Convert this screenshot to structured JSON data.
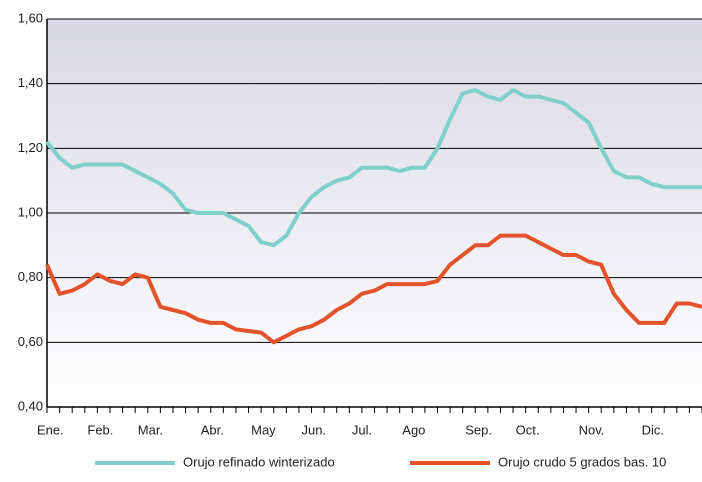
{
  "chart_data": {
    "type": "line",
    "categories": [
      "Ene.",
      null,
      null,
      null,
      "Feb.",
      null,
      null,
      null,
      "Mar.",
      null,
      null,
      null,
      null,
      "Abr.",
      null,
      null,
      null,
      "May",
      null,
      null,
      null,
      "Jun.",
      null,
      null,
      null,
      "Jul.",
      null,
      null,
      null,
      "Ago",
      null,
      null,
      null,
      null,
      "Sep.",
      null,
      null,
      null,
      "Oct.",
      null,
      null,
      null,
      null,
      "Nov.",
      null,
      null,
      null,
      null,
      "Dic.",
      null,
      null,
      null,
      null
    ],
    "series": [
      {
        "name": "Orujo refinado winterizado",
        "color": "#7fd0c8",
        "values": [
          1.22,
          1.17,
          1.14,
          1.15,
          1.15,
          1.15,
          1.15,
          1.13,
          1.11,
          1.09,
          1.06,
          1.01,
          1.0,
          1.0,
          1.0,
          0.98,
          0.96,
          0.91,
          0.9,
          0.93,
          1.0,
          1.05,
          1.08,
          1.1,
          1.11,
          1.14,
          1.14,
          1.14,
          1.13,
          1.14,
          1.14,
          1.2,
          1.29,
          1.37,
          1.38,
          1.36,
          1.35,
          1.38,
          1.36,
          1.36,
          1.35,
          1.34,
          1.31,
          1.28,
          1.2,
          1.13,
          1.11,
          1.11,
          1.09,
          1.08,
          1.08,
          1.08,
          1.08
        ]
      },
      {
        "name": "Orujo crudo 5 grados bas. 10",
        "color": "#e2532b",
        "values": [
          0.84,
          0.75,
          0.76,
          0.78,
          0.81,
          0.79,
          0.78,
          0.81,
          0.8,
          0.71,
          0.7,
          0.69,
          0.67,
          0.66,
          0.66,
          0.64,
          0.635,
          0.63,
          0.6,
          0.62,
          0.64,
          0.65,
          0.67,
          0.7,
          0.72,
          0.75,
          0.76,
          0.78,
          0.78,
          0.78,
          0.78,
          0.79,
          0.84,
          0.87,
          0.9,
          0.9,
          0.93,
          0.93,
          0.93,
          0.91,
          0.89,
          0.87,
          0.87,
          0.85,
          0.84,
          0.75,
          0.7,
          0.66,
          0.66,
          0.66,
          0.72,
          0.72,
          0.71
        ]
      }
    ],
    "ylim": [
      0.4,
      1.6
    ],
    "yticks": [
      {
        "value": 0.4,
        "label": "0,40"
      },
      {
        "value": 0.6,
        "label": "0,60"
      },
      {
        "value": 0.8,
        "label": "0,80"
      },
      {
        "value": 1.0,
        "label": "1,00"
      },
      {
        "value": 1.2,
        "label": "1,20"
      },
      {
        "value": 1.4,
        "label": "1,40"
      },
      {
        "value": 1.6,
        "label": "1,60"
      }
    ],
    "grid": true,
    "legend": "bottom"
  }
}
